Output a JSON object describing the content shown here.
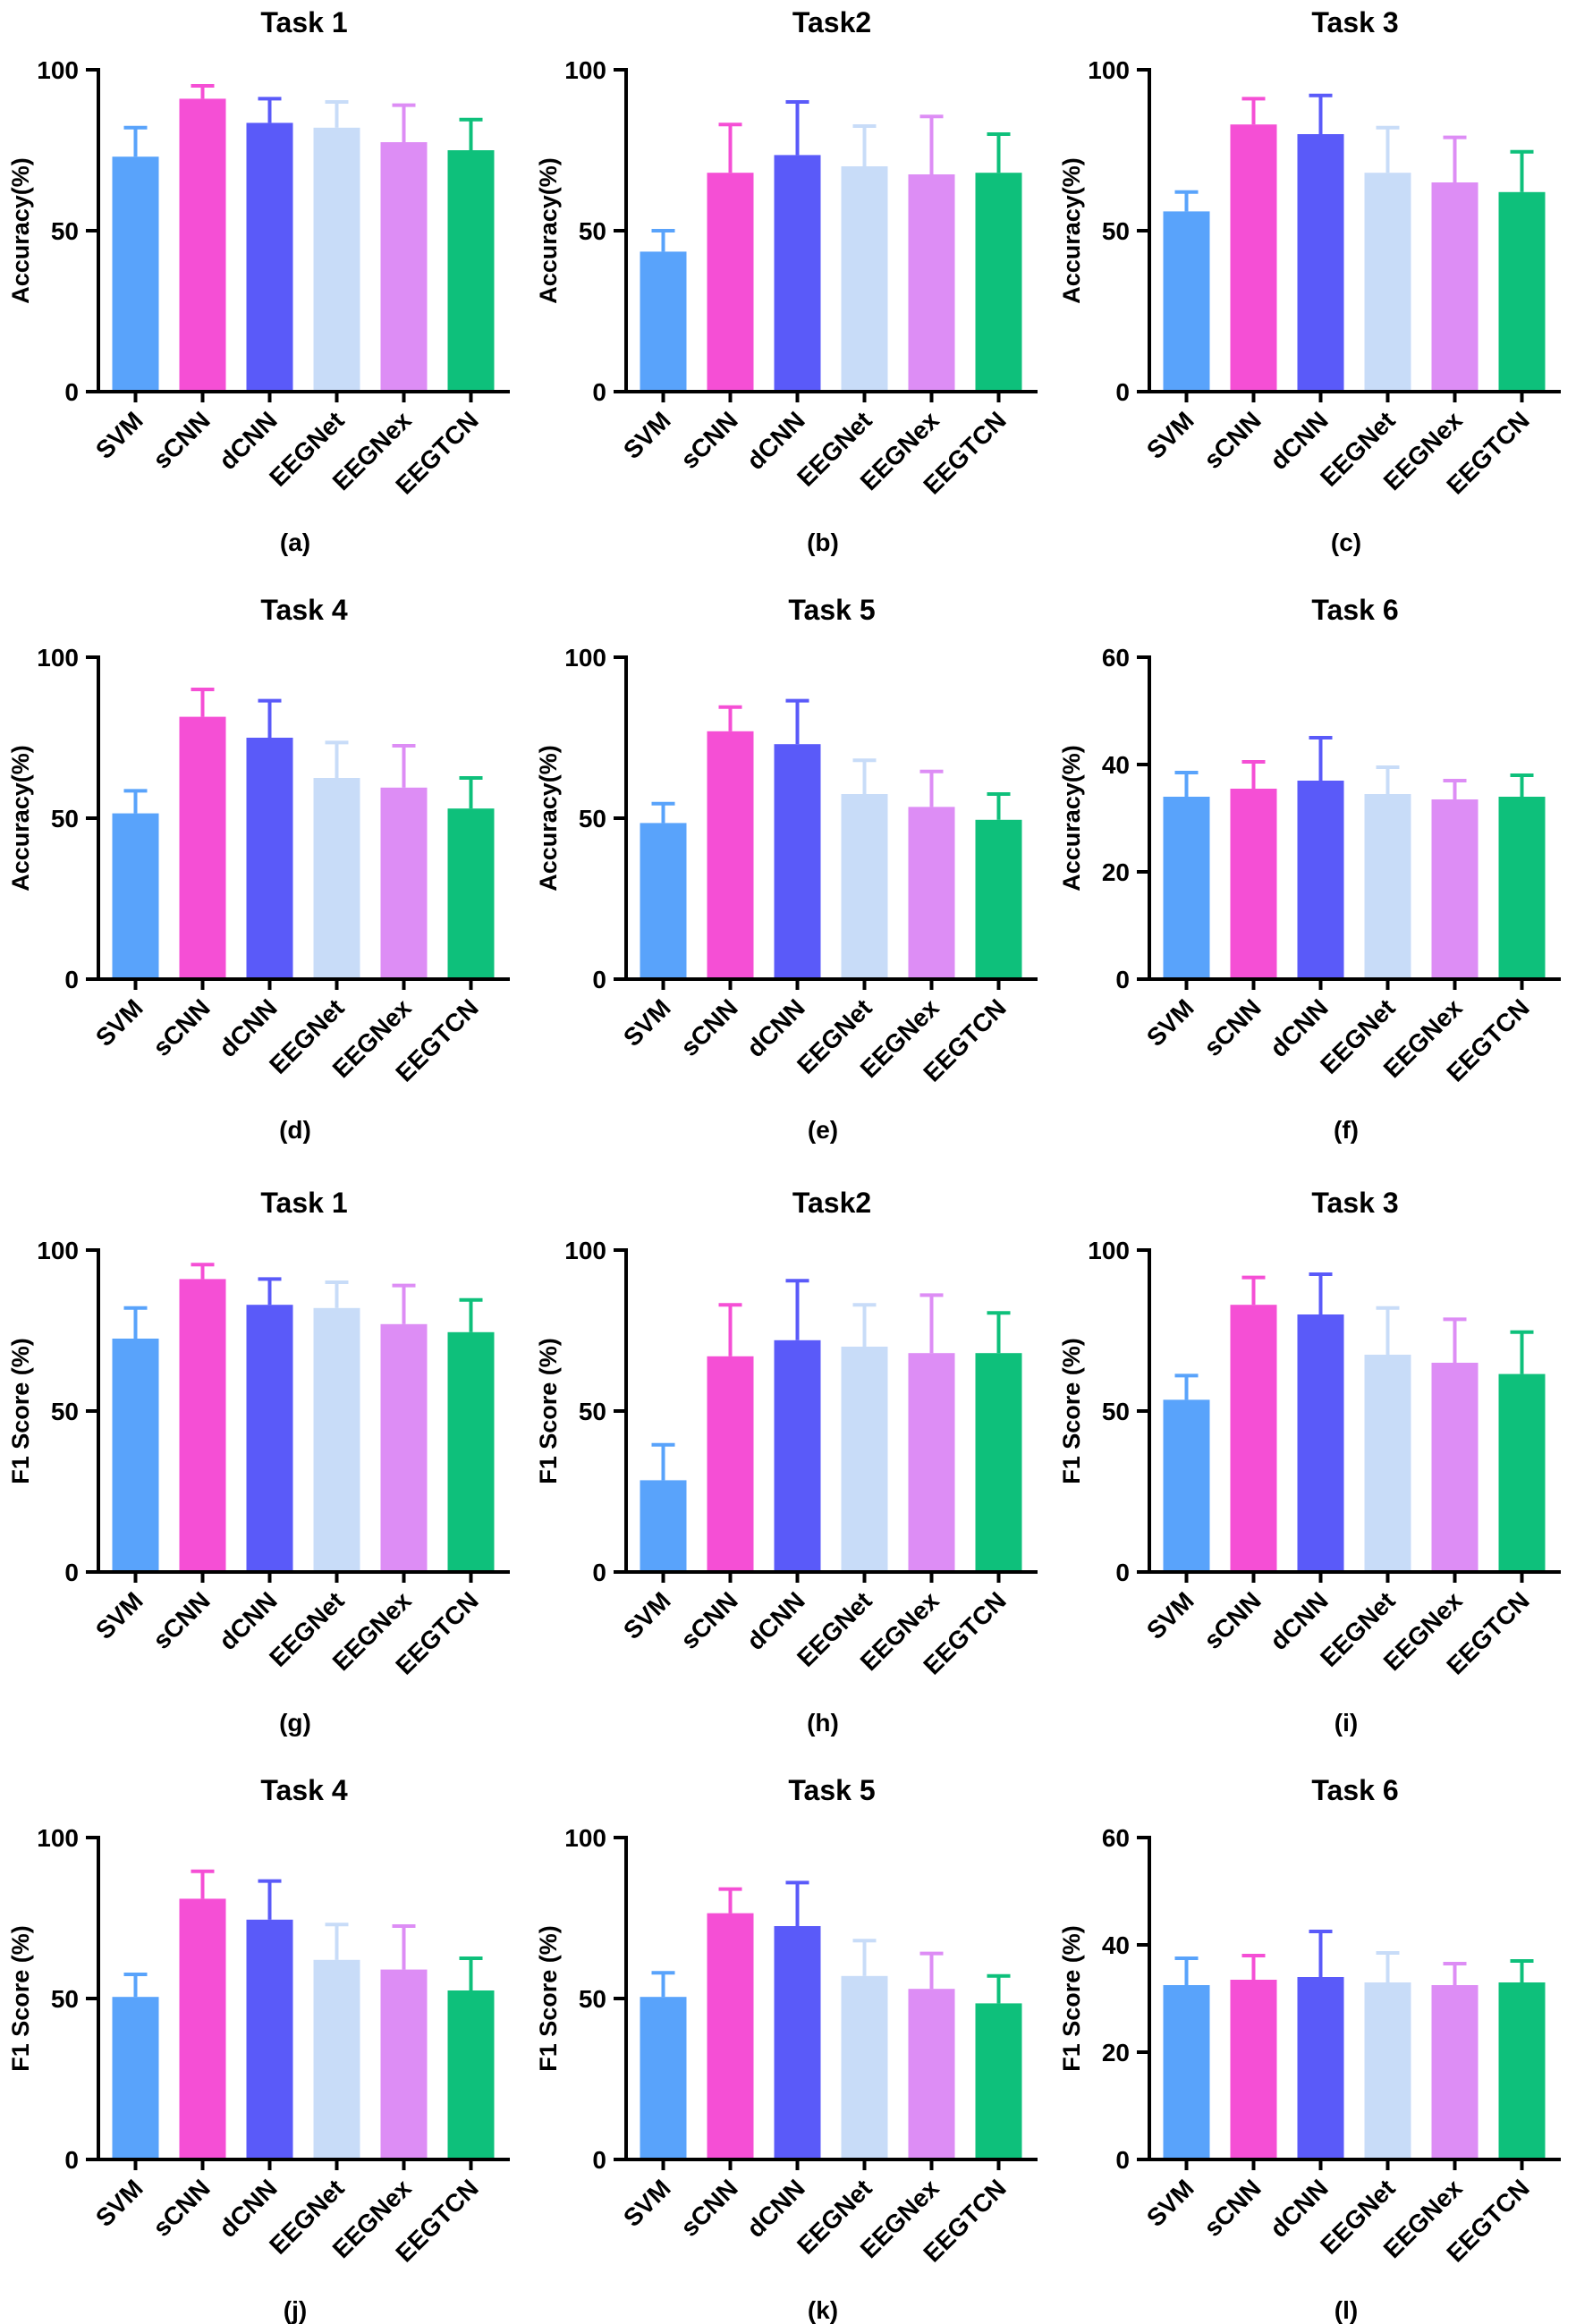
{
  "categories": [
    "SVM",
    "sCNN",
    "dCNN",
    "EEGNet",
    "EEGNex",
    "EEGTCN"
  ],
  "colors": [
    "#59a3fb",
    "#f54fd5",
    "#5a5af9",
    "#c8dcf8",
    "#dd8df5",
    "#0ec07b"
  ],
  "chart_data": [
    {
      "type": "bar",
      "title": "Task 1",
      "ylabel": "Accuracy(%)",
      "panel": "(a)",
      "ylim": [
        0,
        100
      ],
      "yticks": [
        0,
        50,
        100
      ],
      "categories": [
        "SVM",
        "sCNN",
        "dCNN",
        "EEGNet",
        "EEGNex",
        "EEGTCN"
      ],
      "values": [
        73,
        91,
        83.5,
        82,
        77.5,
        75
      ],
      "errors": [
        9,
        4,
        7.5,
        8,
        11.5,
        9.5
      ]
    },
    {
      "type": "bar",
      "title": "Task2",
      "ylabel": "Accuracy(%)",
      "panel": "(b)",
      "ylim": [
        0,
        100
      ],
      "yticks": [
        0,
        50,
        100
      ],
      "categories": [
        "SVM",
        "sCNN",
        "dCNN",
        "EEGNet",
        "EEGNex",
        "EEGTCN"
      ],
      "values": [
        43.5,
        68,
        73.5,
        70,
        67.5,
        68
      ],
      "errors": [
        6.5,
        15,
        16.5,
        12.5,
        18,
        12
      ]
    },
    {
      "type": "bar",
      "title": "Task 3",
      "ylabel": "Accuracy(%)",
      "panel": "(c)",
      "ylim": [
        0,
        100
      ],
      "yticks": [
        0,
        50,
        100
      ],
      "categories": [
        "SVM",
        "sCNN",
        "dCNN",
        "EEGNet",
        "EEGNex",
        "EEGTCN"
      ],
      "values": [
        56,
        83,
        80,
        68,
        65,
        62
      ],
      "errors": [
        6,
        8,
        12,
        14,
        14,
        12.5
      ]
    },
    {
      "type": "bar",
      "title": "Task 4",
      "ylabel": "Accuracy(%)",
      "panel": "(d)",
      "ylim": [
        0,
        100
      ],
      "yticks": [
        0,
        50,
        100
      ],
      "categories": [
        "SVM",
        "sCNN",
        "dCNN",
        "EEGNet",
        "EEGNex",
        "EEGTCN"
      ],
      "values": [
        51.5,
        81.5,
        75,
        62.5,
        59.5,
        53
      ],
      "errors": [
        7,
        8.5,
        11.5,
        11,
        13,
        9.5
      ]
    },
    {
      "type": "bar",
      "title": "Task 5",
      "ylabel": "Accuracy(%)",
      "panel": "(e)",
      "ylim": [
        0,
        100
      ],
      "yticks": [
        0,
        50,
        100
      ],
      "categories": [
        "SVM",
        "sCNN",
        "dCNN",
        "EEGNet",
        "EEGNex",
        "EEGTCN"
      ],
      "values": [
        48.5,
        77,
        73,
        57.5,
        53.5,
        49.5
      ],
      "errors": [
        6,
        7.5,
        13.5,
        10.5,
        11,
        8
      ]
    },
    {
      "type": "bar",
      "title": "Task 6",
      "ylabel": "Accuracy(%)",
      "panel": "(f)",
      "ylim": [
        0,
        60
      ],
      "yticks": [
        0,
        20,
        40,
        60
      ],
      "categories": [
        "SVM",
        "sCNN",
        "dCNN",
        "EEGNet",
        "EEGNex",
        "EEGTCN"
      ],
      "values": [
        34,
        35.5,
        37,
        34.5,
        33.5,
        34
      ],
      "errors": [
        4.5,
        5,
        8,
        5,
        3.5,
        4
      ]
    },
    {
      "type": "bar",
      "title": "Task 1",
      "ylabel": "F1 Score (%)",
      "panel": "(g)",
      "ylim": [
        0,
        100
      ],
      "yticks": [
        0,
        50,
        100
      ],
      "categories": [
        "SVM",
        "sCNN",
        "dCNN",
        "EEGNet",
        "EEGNex",
        "EEGTCN"
      ],
      "values": [
        72.5,
        91,
        83,
        82,
        77,
        74.5
      ],
      "errors": [
        9.5,
        4.5,
        8,
        8,
        12,
        10
      ]
    },
    {
      "type": "bar",
      "title": "Task2",
      "ylabel": "F1 Score (%)",
      "panel": "(h)",
      "ylim": [
        0,
        100
      ],
      "yticks": [
        0,
        50,
        100
      ],
      "categories": [
        "SVM",
        "sCNN",
        "dCNN",
        "EEGNet",
        "EEGNex",
        "EEGTCN"
      ],
      "values": [
        28.5,
        67,
        72,
        70,
        68,
        68
      ],
      "errors": [
        11,
        16,
        18.5,
        13,
        18,
        12.5
      ]
    },
    {
      "type": "bar",
      "title": "Task 3",
      "ylabel": "F1 Score (%)",
      "panel": "(i)",
      "ylim": [
        0,
        100
      ],
      "yticks": [
        0,
        50,
        100
      ],
      "categories": [
        "SVM",
        "sCNN",
        "dCNN",
        "EEGNet",
        "EEGNex",
        "EEGTCN"
      ],
      "values": [
        53.5,
        83,
        80,
        67.5,
        65,
        61.5
      ],
      "errors": [
        7.5,
        8.5,
        12.5,
        14.5,
        13.5,
        13
      ]
    },
    {
      "type": "bar",
      "title": "Task 4",
      "ylabel": "F1 Score (%)",
      "panel": "(j)",
      "ylim": [
        0,
        100
      ],
      "yticks": [
        0,
        50,
        100
      ],
      "categories": [
        "SVM",
        "sCNN",
        "dCNN",
        "EEGNet",
        "EEGNex",
        "EEGTCN"
      ],
      "values": [
        50.5,
        81,
        74.5,
        62,
        59,
        52.5
      ],
      "errors": [
        7,
        8.5,
        12,
        11,
        13.5,
        10
      ]
    },
    {
      "type": "bar",
      "title": "Task 5",
      "ylabel": "F1 Score (%)",
      "panel": "(k)",
      "ylim": [
        0,
        100
      ],
      "yticks": [
        0,
        50,
        100
      ],
      "categories": [
        "SVM",
        "sCNN",
        "dCNN",
        "EEGNet",
        "EEGNex",
        "EEGTCN"
      ],
      "values": [
        50.5,
        76.5,
        72.5,
        57,
        53,
        48.5
      ],
      "errors": [
        7.5,
        7.5,
        13.5,
        11,
        11,
        8.5
      ]
    },
    {
      "type": "bar",
      "title": "Task 6",
      "ylabel": "F1 Score (%)",
      "panel": "(l)",
      "ylim": [
        0,
        60
      ],
      "yticks": [
        0,
        20,
        40,
        60
      ],
      "categories": [
        "SVM",
        "sCNN",
        "dCNN",
        "EEGNet",
        "EEGNex",
        "EEGTCN"
      ],
      "values": [
        32.5,
        33.5,
        34,
        33,
        32.5,
        33
      ],
      "errors": [
        5,
        4.5,
        8.5,
        5.5,
        4,
        4
      ]
    }
  ]
}
